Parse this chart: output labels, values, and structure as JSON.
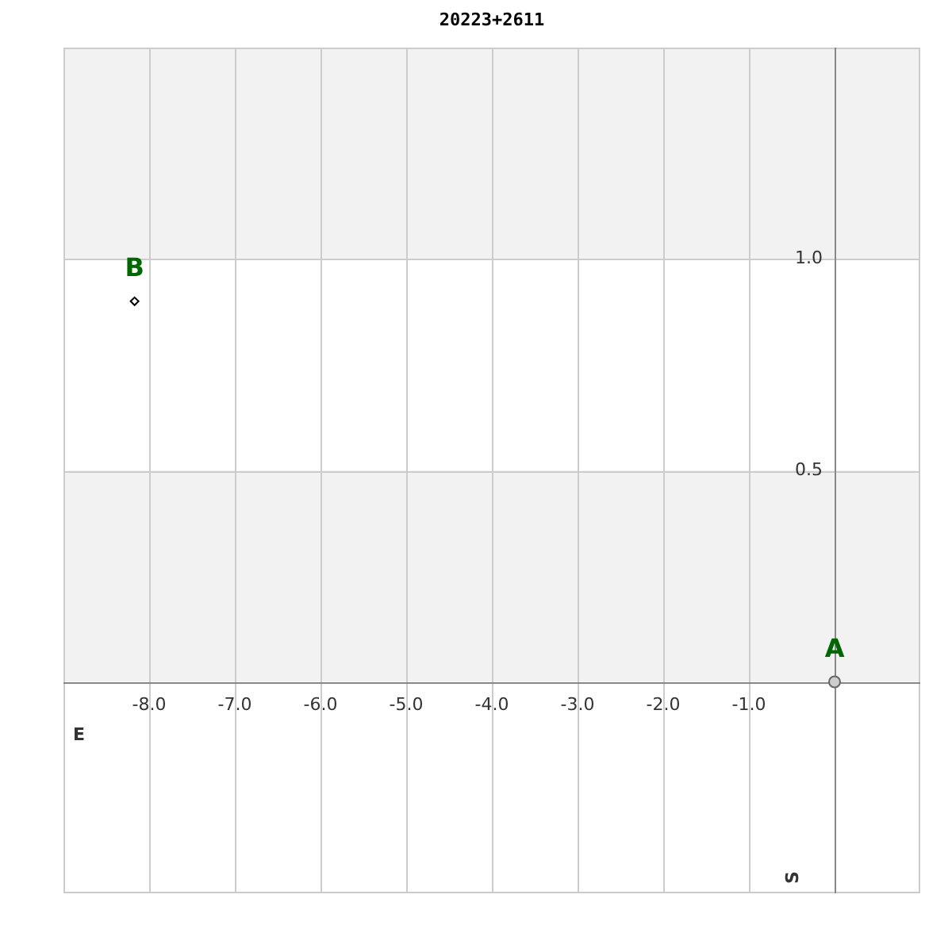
{
  "chart_data": {
    "type": "scatter",
    "title": "20223+2611",
    "series": [
      {
        "name": "A",
        "color": "#666666",
        "marker": "circle",
        "x": [
          0
        ],
        "values": [
          0
        ]
      },
      {
        "name": "B",
        "color": "#000000",
        "marker": "diamond",
        "x": [
          -8.17
        ],
        "values": [
          0.9
        ]
      }
    ],
    "xlim": [
      -9,
      1
    ],
    "ylim": [
      -0.5,
      1.5
    ],
    "xticks": [
      {
        "value": -8,
        "label": "-8.0"
      },
      {
        "value": -7,
        "label": "-7.0"
      },
      {
        "value": -6,
        "label": "-6.0"
      },
      {
        "value": -5,
        "label": "-5.0"
      },
      {
        "value": -4,
        "label": "-4.0"
      },
      {
        "value": -3,
        "label": "-3.0"
      },
      {
        "value": -2,
        "label": "-2.0"
      },
      {
        "value": -1,
        "label": "-1.0"
      },
      {
        "value": 0,
        "label": null
      }
    ],
    "yticks": [
      {
        "value": 0,
        "label": null
      },
      {
        "value": 0.5,
        "label": "0.5"
      },
      {
        "value": 1,
        "label": "1.0"
      }
    ],
    "bands": [
      {
        "axis": "y",
        "from": 1,
        "to": 1.5,
        "color": "#f2f2f2"
      },
      {
        "axis": "y",
        "from": 0,
        "to": 0.5,
        "color": "#f2f2f2"
      }
    ],
    "grid": true,
    "legend": false,
    "annotations": [
      "E",
      "S"
    ]
  }
}
